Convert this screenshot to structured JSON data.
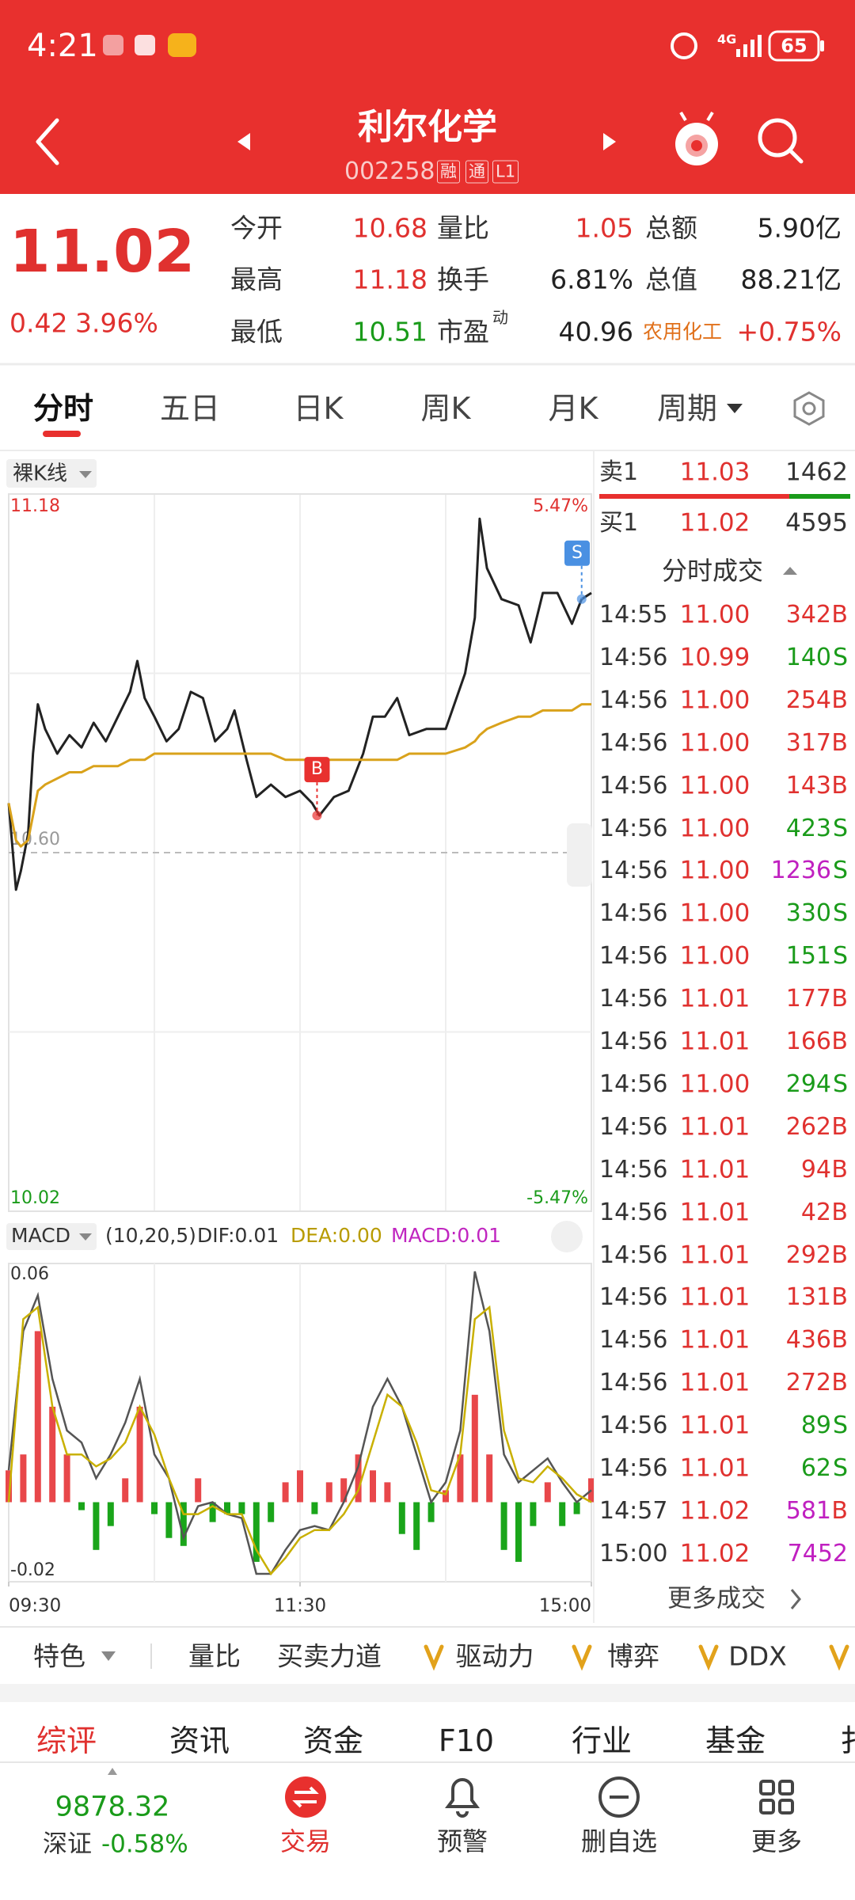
{
  "status_bar": {
    "time": "4:21",
    "network": "4G",
    "battery": "65"
  },
  "header": {
    "title": "利尔化学",
    "code": "002258",
    "badges": [
      "融",
      "通",
      "L1"
    ]
  },
  "quote": {
    "price": "11.02",
    "change": "0.42",
    "change_pct": "3.96%",
    "rows": [
      [
        {
          "label": "今开",
          "value": "10.68"
        },
        {
          "label": "量比",
          "value": "1.05"
        },
        {
          "label": "总额",
          "value": "5.90亿"
        }
      ],
      [
        {
          "label": "最高",
          "value": "11.18"
        },
        {
          "label": "换手",
          "value": "6.81%"
        },
        {
          "label": "总值",
          "value": "88.21亿"
        }
      ],
      [
        {
          "label": "最低",
          "value": "10.51"
        },
        {
          "label": "市盈",
          "superscript": "动",
          "value": "40.96"
        },
        {
          "label": "农用化工",
          "value": "+0.75%"
        }
      ]
    ]
  },
  "period_tabs": [
    "分时",
    "五日",
    "日K",
    "周K",
    "月K",
    "周期"
  ],
  "chart_data": [
    {
      "type": "line",
      "label": "裸K线",
      "x": [
        0,
        3,
        5,
        8,
        10,
        12,
        15,
        20,
        25,
        30,
        35,
        40,
        45,
        50,
        53,
        56,
        60,
        65,
        70,
        75,
        80,
        85,
        90,
        93,
        98,
        102,
        108,
        114,
        120,
        125,
        128,
        134,
        140,
        146,
        150,
        155,
        160,
        165,
        172,
        180,
        188,
        192,
        194,
        197,
        203,
        210,
        215,
        220,
        226,
        232,
        236,
        240
      ],
      "xlim": [
        0,
        240
      ],
      "ylim": [
        10.02,
        11.18
      ],
      "yticks": [
        11.18,
        {
          "value": 10.6,
          "label": "10.60"
        },
        10.02
      ],
      "y2lim": [
        -5.47,
        5.47
      ],
      "y2ticks": [
        {
          "value": 5.47,
          "label": "5.47%"
        },
        {
          "value": -5.47,
          "label": "-5.47%"
        }
      ],
      "series": [
        {
          "color": "#222222",
          "values": [
            10.68,
            10.54,
            10.57,
            10.63,
            10.76,
            10.84,
            10.8,
            10.76,
            10.79,
            10.77,
            10.81,
            10.78,
            10.82,
            10.86,
            10.91,
            10.85,
            10.82,
            10.78,
            10.8,
            10.86,
            10.85,
            10.78,
            10.8,
            10.83,
            10.75,
            10.69,
            10.71,
            10.69,
            10.7,
            10.68,
            10.66,
            10.69,
            10.7,
            10.76,
            10.82,
            10.82,
            10.85,
            10.79,
            10.8,
            10.8,
            10.89,
            10.98,
            11.14,
            11.06,
            11.01,
            11.0,
            10.94,
            11.02,
            11.02,
            10.97,
            11.01,
            11.02
          ]
        },
        {
          "color": "#d9a21b",
          "values": [
            10.68,
            10.62,
            10.61,
            10.62,
            10.66,
            10.7,
            10.71,
            10.72,
            10.73,
            10.73,
            10.74,
            10.74,
            10.74,
            10.75,
            10.75,
            10.75,
            10.76,
            10.76,
            10.76,
            10.76,
            10.76,
            10.76,
            10.76,
            10.76,
            10.76,
            10.76,
            10.76,
            10.75,
            10.75,
            10.75,
            10.75,
            10.75,
            10.75,
            10.75,
            10.75,
            10.75,
            10.75,
            10.76,
            10.76,
            10.76,
            10.77,
            10.78,
            10.79,
            10.8,
            10.81,
            10.82,
            10.82,
            10.83,
            10.83,
            10.83,
            10.84,
            10.84
          ]
        }
      ],
      "annotations": [
        {
          "text": "B",
          "x": 127,
          "y": 10.66,
          "color": "#e8312f"
        },
        {
          "text": "S",
          "x": 236,
          "y": 11.01,
          "color": "#4a90e2"
        }
      ]
    },
    {
      "type": "bar",
      "label": "MACD",
      "params": "(10,20,5)",
      "readouts": [
        "DIF:0.01",
        "DEA:0.00",
        "MACD:0.01"
      ],
      "readout_colors": [
        "#333333",
        "#b89b00",
        "#c026c0"
      ],
      "x": [
        0,
        6,
        12,
        18,
        24,
        30,
        36,
        42,
        48,
        54,
        60,
        66,
        72,
        78,
        84,
        90,
        96,
        102,
        108,
        114,
        120,
        126,
        132,
        138,
        144,
        150,
        156,
        162,
        168,
        174,
        180,
        186,
        192,
        198,
        204,
        210,
        216,
        222,
        228,
        234,
        240
      ],
      "xlim": [
        0,
        240
      ],
      "xticks": [
        {
          "value": 0,
          "label": "09:30"
        },
        {
          "value": 120,
          "label": "11:30"
        },
        {
          "value": 240,
          "label": "15:00"
        }
      ],
      "ylim": [
        -0.02,
        0.06
      ],
      "yticks": [
        0.06,
        -0.02
      ],
      "series": [
        {
          "kind": "bar",
          "color": "#e8474a",
          "negative_color": "#1aa51a",
          "values": [
            0.008,
            0.012,
            0.043,
            0.024,
            0.012,
            -0.002,
            -0.012,
            -0.006,
            0.006,
            0.024,
            -0.003,
            -0.009,
            -0.011,
            0.006,
            -0.005,
            -0.003,
            -0.003,
            -0.015,
            -0.005,
            0.005,
            0.008,
            -0.003,
            0.005,
            0.006,
            0.012,
            0.008,
            0.005,
            -0.008,
            -0.012,
            -0.005,
            0.003,
            0.012,
            0.027,
            0.012,
            -0.012,
            -0.015,
            -0.006,
            0.005,
            -0.006,
            -0.003,
            0.006
          ]
        },
        {
          "kind": "line",
          "color": "#555555",
          "values": [
            0.008,
            0.043,
            0.052,
            0.031,
            0.018,
            0.015,
            0.006,
            0.012,
            0.02,
            0.031,
            0.012,
            0.006,
            -0.009,
            -0.001,
            0,
            -0.003,
            -0.004,
            -0.018,
            -0.018,
            -0.012,
            -0.007,
            -0.006,
            -0.007,
            0,
            0.009,
            0.024,
            0.031,
            0.024,
            0.012,
            0,
            0.005,
            0.018,
            0.058,
            0.043,
            0.012,
            0.005,
            0.008,
            0.011,
            0.005,
            0,
            0.003
          ]
        },
        {
          "kind": "line",
          "color": "#c9b000",
          "values": [
            0,
            0.046,
            0.049,
            0.024,
            0.012,
            0.012,
            0.009,
            0.011,
            0.015,
            0.024,
            0.017,
            0.006,
            -0.003,
            -0.003,
            -0.001,
            -0.003,
            -0.003,
            -0.012,
            -0.018,
            -0.014,
            -0.009,
            -0.007,
            -0.007,
            -0.003,
            0.003,
            0.015,
            0.027,
            0.024,
            0.015,
            0.003,
            0.002,
            0.012,
            0.046,
            0.049,
            0.018,
            0.006,
            0.005,
            0.009,
            0.006,
            0.002,
            0
          ]
        }
      ]
    }
  ],
  "order_book": {
    "asks": [
      {
        "label": "卖1",
        "price": "11.03",
        "volume": "1462"
      }
    ],
    "bids": [
      {
        "label": "买1",
        "price": "11.02",
        "volume": "4595"
      }
    ]
  },
  "trades": {
    "title": "分时成交",
    "more": "更多成交",
    "rows": [
      {
        "time": "14:55",
        "price": "11.00",
        "volume": "342",
        "side": "B"
      },
      {
        "time": "14:56",
        "price": "10.99",
        "volume": "140",
        "side": "S"
      },
      {
        "time": "14:56",
        "price": "11.00",
        "volume": "254",
        "side": "B"
      },
      {
        "time": "14:56",
        "price": "11.00",
        "volume": "317",
        "side": "B"
      },
      {
        "time": "14:56",
        "price": "11.00",
        "volume": "143",
        "side": "B"
      },
      {
        "time": "14:56",
        "price": "11.00",
        "volume": "423",
        "side": "S"
      },
      {
        "time": "14:56",
        "price": "11.00",
        "volume": "1236",
        "side": "S",
        "large": true
      },
      {
        "time": "14:56",
        "price": "11.00",
        "volume": "330",
        "side": "S"
      },
      {
        "time": "14:56",
        "price": "11.00",
        "volume": "151",
        "side": "S"
      },
      {
        "time": "14:56",
        "price": "11.01",
        "volume": "177",
        "side": "B"
      },
      {
        "time": "14:56",
        "price": "11.01",
        "volume": "166",
        "side": "B"
      },
      {
        "time": "14:56",
        "price": "11.00",
        "volume": "294",
        "side": "S"
      },
      {
        "time": "14:56",
        "price": "11.01",
        "volume": "262",
        "side": "B"
      },
      {
        "time": "14:56",
        "price": "11.01",
        "volume": "94",
        "side": "B"
      },
      {
        "time": "14:56",
        "price": "11.01",
        "volume": "42",
        "side": "B"
      },
      {
        "time": "14:56",
        "price": "11.01",
        "volume": "292",
        "side": "B"
      },
      {
        "time": "14:56",
        "price": "11.01",
        "volume": "131",
        "side": "B"
      },
      {
        "time": "14:56",
        "price": "11.01",
        "volume": "436",
        "side": "B"
      },
      {
        "time": "14:56",
        "price": "11.01",
        "volume": "272",
        "side": "B"
      },
      {
        "time": "14:56",
        "price": "11.01",
        "volume": "89",
        "side": "S"
      },
      {
        "time": "14:56",
        "price": "11.01",
        "volume": "62",
        "side": "S"
      },
      {
        "time": "14:57",
        "price": "11.02",
        "volume": "581",
        "side": "B",
        "large": true
      },
      {
        "time": "15:00",
        "price": "11.02",
        "volume": "7452",
        "large": true
      }
    ]
  },
  "indicator_tabs": [
    "特色",
    "量比",
    "买卖力道",
    "驱动力",
    "博弈",
    "DDX"
  ],
  "info_tabs": [
    "综评",
    "资讯",
    "资金",
    "F10",
    "行业",
    "基金",
    "扌"
  ],
  "bottom_nav": {
    "index_value": "9878.32",
    "index_name": "深证",
    "index_change": "-0.58%",
    "items": [
      "交易",
      "预警",
      "删自选",
      "更多"
    ]
  }
}
